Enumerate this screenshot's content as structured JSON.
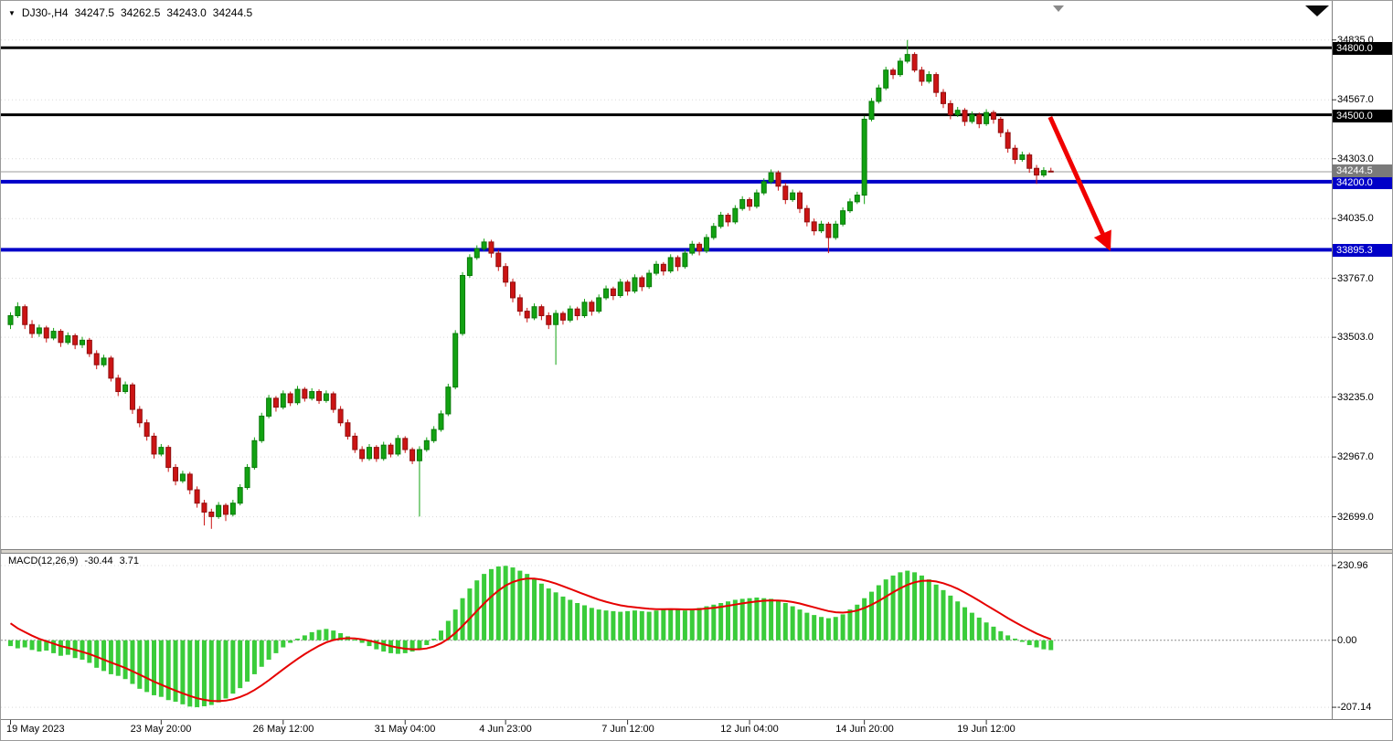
{
  "header": {
    "symbol_timeframe": "DJ30-,H4",
    "open": "34247.5",
    "high": "34262.5",
    "low": "34243.0",
    "close": "34244.5"
  },
  "colors": {
    "bull": "#12A212",
    "bull_border": "#0A7A0A",
    "bear": "#CC1414",
    "bear_border": "#8F0F0F",
    "macd_bar": "#3ACC3A",
    "macd_signal": "#E60000",
    "grid": "#D9D9D9",
    "zero_line": "#909090",
    "current_price_line": "#9C9C9C",
    "current_tag_bg": "#7A7A7A",
    "arrow": "#F00000",
    "axis_border": "#808080",
    "separator_bg": "#D8D4CC"
  },
  "chart_data": {
    "type": "candlestick",
    "symbol": "DJ30-",
    "timeframe": "H4",
    "price_axis_ticks": [
      34835.0,
      34567.0,
      34303.0,
      34035.0,
      33767.0,
      33503.0,
      33235.0,
      32967.0,
      32699.0
    ],
    "horizontal_lines": [
      {
        "value": 34800.0,
        "color": "#000000",
        "weight": 3
      },
      {
        "value": 34500.0,
        "color": "#000000",
        "weight": 3
      },
      {
        "value": 34200.0,
        "color": "#0000C8",
        "weight": 4
      },
      {
        "value": 33895.3,
        "color": "#0000C8",
        "weight": 4
      }
    ],
    "current_price": 34244.5,
    "time_ticks": [
      {
        "bar": 0,
        "label": "19 May 2023"
      },
      {
        "bar": 21,
        "label": "23 May 20:00"
      },
      {
        "bar": 38,
        "label": "26 May 12:00"
      },
      {
        "bar": 55,
        "label": "31 May 04:00"
      },
      {
        "bar": 69,
        "label": "4 Jun 23:00"
      },
      {
        "bar": 86,
        "label": "7 Jun 12:00"
      },
      {
        "bar": 103,
        "label": "12 Jun 04:00"
      },
      {
        "bar": 119,
        "label": "14 Jun 20:00"
      },
      {
        "bar": 136,
        "label": "19 Jun 12:00"
      }
    ],
    "candles": [
      [
        33560,
        33615,
        33540,
        33600
      ],
      [
        33600,
        33660,
        33590,
        33640
      ],
      [
        33640,
        33650,
        33540,
        33560
      ],
      [
        33560,
        33580,
        33500,
        33520
      ],
      [
        33520,
        33560,
        33505,
        33545
      ],
      [
        33545,
        33555,
        33480,
        33500
      ],
      [
        33500,
        33545,
        33490,
        33530
      ],
      [
        33530,
        33540,
        33460,
        33480
      ],
      [
        33480,
        33525,
        33470,
        33510
      ],
      [
        33510,
        33520,
        33450,
        33470
      ],
      [
        33470,
        33505,
        33455,
        33490
      ],
      [
        33490,
        33500,
        33415,
        33430
      ],
      [
        33430,
        33445,
        33360,
        33380
      ],
      [
        33380,
        33425,
        33370,
        33410
      ],
      [
        33410,
        33420,
        33305,
        33320
      ],
      [
        33320,
        33335,
        33240,
        33260
      ],
      [
        33260,
        33305,
        33250,
        33290
      ],
      [
        33290,
        33300,
        33160,
        33180
      ],
      [
        33180,
        33195,
        33100,
        33120
      ],
      [
        33120,
        33135,
        33040,
        33060
      ],
      [
        33060,
        33075,
        32960,
        32980
      ],
      [
        32980,
        33025,
        32970,
        33010
      ],
      [
        33010,
        33020,
        32900,
        32920
      ],
      [
        32920,
        32935,
        32840,
        32860
      ],
      [
        32860,
        32905,
        32850,
        32890
      ],
      [
        32890,
        32900,
        32800,
        32820
      ],
      [
        32820,
        32835,
        32740,
        32760
      ],
      [
        32760,
        32775,
        32660,
        32720
      ],
      [
        32720,
        32735,
        32645,
        32700
      ],
      [
        32700,
        32765,
        32690,
        32750
      ],
      [
        32750,
        32760,
        32680,
        32710
      ],
      [
        32710,
        32775,
        32700,
        32760
      ],
      [
        32760,
        32845,
        32750,
        32830
      ],
      [
        32830,
        32935,
        32820,
        32920
      ],
      [
        32920,
        33055,
        32910,
        33040
      ],
      [
        33040,
        33165,
        33030,
        33150
      ],
      [
        33150,
        33245,
        33140,
        33230
      ],
      [
        33230,
        33240,
        33170,
        33190
      ],
      [
        33190,
        33265,
        33180,
        33250
      ],
      [
        33250,
        33260,
        33195,
        33210
      ],
      [
        33210,
        33285,
        33200,
        33270
      ],
      [
        33270,
        33280,
        33215,
        33230
      ],
      [
        33230,
        33275,
        33220,
        33260
      ],
      [
        33260,
        33270,
        33205,
        33220
      ],
      [
        33220,
        33265,
        33210,
        33250
      ],
      [
        33250,
        33260,
        33165,
        33180
      ],
      [
        33180,
        33195,
        33105,
        33120
      ],
      [
        33120,
        33135,
        33045,
        33060
      ],
      [
        33060,
        33075,
        32985,
        33000
      ],
      [
        33000,
        33015,
        32945,
        32960
      ],
      [
        32960,
        33025,
        32950,
        33010
      ],
      [
        33010,
        33020,
        32945,
        32960
      ],
      [
        32960,
        33035,
        32950,
        33020
      ],
      [
        33020,
        33030,
        32965,
        32980
      ],
      [
        32980,
        33065,
        32970,
        33050
      ],
      [
        33050,
        33060,
        32985,
        33000
      ],
      [
        33000,
        33010,
        32935,
        32950
      ],
      [
        32950,
        33015,
        32700,
        33000
      ],
      [
        33000,
        33055,
        32990,
        33040
      ],
      [
        33040,
        33105,
        33030,
        33090
      ],
      [
        33090,
        33175,
        33080,
        33160
      ],
      [
        33160,
        33295,
        33150,
        33280
      ],
      [
        33280,
        33535,
        33270,
        33520
      ],
      [
        33520,
        33795,
        33510,
        33780
      ],
      [
        33780,
        33875,
        33770,
        33860
      ],
      [
        33860,
        33915,
        33850,
        33900
      ],
      [
        33900,
        33945,
        33890,
        33930
      ],
      [
        33930,
        33940,
        33860,
        33880
      ],
      [
        33880,
        33895,
        33800,
        33820
      ],
      [
        33820,
        33835,
        33730,
        33750
      ],
      [
        33750,
        33765,
        33660,
        33680
      ],
      [
        33680,
        33695,
        33600,
        33620
      ],
      [
        33620,
        33635,
        33570,
        33590
      ],
      [
        33590,
        33655,
        33580,
        33640
      ],
      [
        33640,
        33650,
        33580,
        33600
      ],
      [
        33600,
        33615,
        33540,
        33560
      ],
      [
        33560,
        33625,
        33380,
        33610
      ],
      [
        33610,
        33620,
        33560,
        33580
      ],
      [
        33580,
        33645,
        33570,
        33630
      ],
      [
        33630,
        33640,
        33580,
        33600
      ],
      [
        33600,
        33675,
        33590,
        33660
      ],
      [
        33660,
        33670,
        33600,
        33620
      ],
      [
        33620,
        33695,
        33610,
        33680
      ],
      [
        33680,
        33735,
        33670,
        33720
      ],
      [
        33720,
        33730,
        33670,
        33690
      ],
      [
        33690,
        33765,
        33680,
        33750
      ],
      [
        33750,
        33760,
        33690,
        33710
      ],
      [
        33710,
        33785,
        33700,
        33770
      ],
      [
        33770,
        33780,
        33710,
        33730
      ],
      [
        33730,
        33805,
        33720,
        33790
      ],
      [
        33790,
        33845,
        33780,
        33830
      ],
      [
        33830,
        33840,
        33780,
        33800
      ],
      [
        33800,
        33875,
        33790,
        33860
      ],
      [
        33860,
        33870,
        33800,
        33820
      ],
      [
        33820,
        33895,
        33810,
        33880
      ],
      [
        33880,
        33935,
        33870,
        33920
      ],
      [
        33920,
        33930,
        33870,
        33890
      ],
      [
        33890,
        33965,
        33880,
        33950
      ],
      [
        33950,
        34015,
        33940,
        34000
      ],
      [
        34000,
        34065,
        33990,
        34050
      ],
      [
        34050,
        34060,
        34000,
        34020
      ],
      [
        34020,
        34095,
        34010,
        34080
      ],
      [
        34080,
        34135,
        34070,
        34120
      ],
      [
        34120,
        34130,
        34070,
        34090
      ],
      [
        34090,
        34165,
        34080,
        34150
      ],
      [
        34150,
        34215,
        34140,
        34200
      ],
      [
        34200,
        34255,
        34190,
        34240
      ],
      [
        34240,
        34250,
        34160,
        34180
      ],
      [
        34180,
        34195,
        34100,
        34120
      ],
      [
        34120,
        34165,
        34110,
        34150
      ],
      [
        34150,
        34160,
        34060,
        34080
      ],
      [
        34080,
        34095,
        34000,
        34020
      ],
      [
        34020,
        34035,
        33960,
        33980
      ],
      [
        33980,
        34025,
        33970,
        34010
      ],
      [
        34010,
        34020,
        33880,
        33950
      ],
      [
        33950,
        34025,
        33940,
        34010
      ],
      [
        34010,
        34085,
        34000,
        34070
      ],
      [
        34070,
        34125,
        34060,
        34110
      ],
      [
        34110,
        34155,
        34100,
        34140
      ],
      [
        34140,
        34495,
        34100,
        34480
      ],
      [
        34480,
        34575,
        34470,
        34560
      ],
      [
        34560,
        34635,
        34550,
        34620
      ],
      [
        34620,
        34715,
        34610,
        34700
      ],
      [
        34700,
        34710,
        34660,
        34680
      ],
      [
        34680,
        34755,
        34670,
        34740
      ],
      [
        34740,
        34835,
        34730,
        34770
      ],
      [
        34770,
        34780,
        34690,
        34700
      ],
      [
        34700,
        34715,
        34630,
        34650
      ],
      [
        34650,
        34695,
        34640,
        34680
      ],
      [
        34680,
        34690,
        34580,
        34600
      ],
      [
        34600,
        34615,
        34530,
        34550
      ],
      [
        34550,
        34565,
        34480,
        34500
      ],
      [
        34500,
        34535,
        34490,
        34520
      ],
      [
        34520,
        34530,
        34450,
        34470
      ],
      [
        34470,
        34515,
        34460,
        34500
      ],
      [
        34500,
        34510,
        34440,
        34460
      ],
      [
        34460,
        34525,
        34450,
        34510
      ],
      [
        34510,
        34520,
        34460,
        34480
      ],
      [
        34480,
        34490,
        34400,
        34420
      ],
      [
        34420,
        34435,
        34330,
        34350
      ],
      [
        34350,
        34365,
        34280,
        34300
      ],
      [
        34300,
        34335,
        34290,
        34320
      ],
      [
        34320,
        34330,
        34240,
        34260
      ],
      [
        34260,
        34275,
        34190,
        34230
      ],
      [
        34230,
        34265,
        34220,
        34250
      ],
      [
        34247.5,
        34262.5,
        34243.0,
        34244.5
      ]
    ],
    "macd": {
      "label": "MACD(12,26,9)",
      "value_text": "-30.44",
      "signal_text": "3.71",
      "axis_ticks": [
        230.96,
        0.0,
        -207.14
      ],
      "signal_seed": 70,
      "histogram": [
        -18,
        -25,
        -22,
        -30,
        -35,
        -32,
        -40,
        -48,
        -45,
        -55,
        -60,
        -70,
        -85,
        -95,
        -105,
        -110,
        -120,
        -135,
        -150,
        -160,
        -170,
        -175,
        -185,
        -190,
        -198,
        -205,
        -207,
        -204,
        -200,
        -192,
        -180,
        -165,
        -148,
        -128,
        -105,
        -82,
        -60,
        -40,
        -22,
        -8,
        5,
        15,
        25,
        32,
        35,
        30,
        22,
        12,
        2,
        -8,
        -18,
        -28,
        -35,
        -40,
        -42,
        -40,
        -35,
        -28,
        -15,
        5,
        30,
        60,
        95,
        130,
        160,
        185,
        205,
        220,
        228,
        230,
        225,
        215,
        205,
        190,
        175,
        160,
        148,
        135,
        125,
        115,
        108,
        100,
        95,
        92,
        90,
        88,
        90,
        92,
        90,
        88,
        92,
        95,
        98,
        95,
        92,
        95,
        100,
        105,
        110,
        115,
        120,
        125,
        128,
        130,
        132,
        130,
        128,
        122,
        115,
        105,
        95,
        85,
        78,
        72,
        68,
        72,
        80,
        95,
        110,
        130,
        150,
        170,
        188,
        200,
        210,
        215,
        210,
        200,
        188,
        172,
        155,
        138,
        120,
        102,
        85,
        70,
        55,
        42,
        28,
        15,
        5,
        -5,
        -15,
        -22,
        -28,
        -30.44
      ]
    },
    "arrow_annotation": {
      "from_bar": 145.2,
      "from_price": 34490,
      "to_bar": 153.4,
      "to_price": 33905
    }
  }
}
